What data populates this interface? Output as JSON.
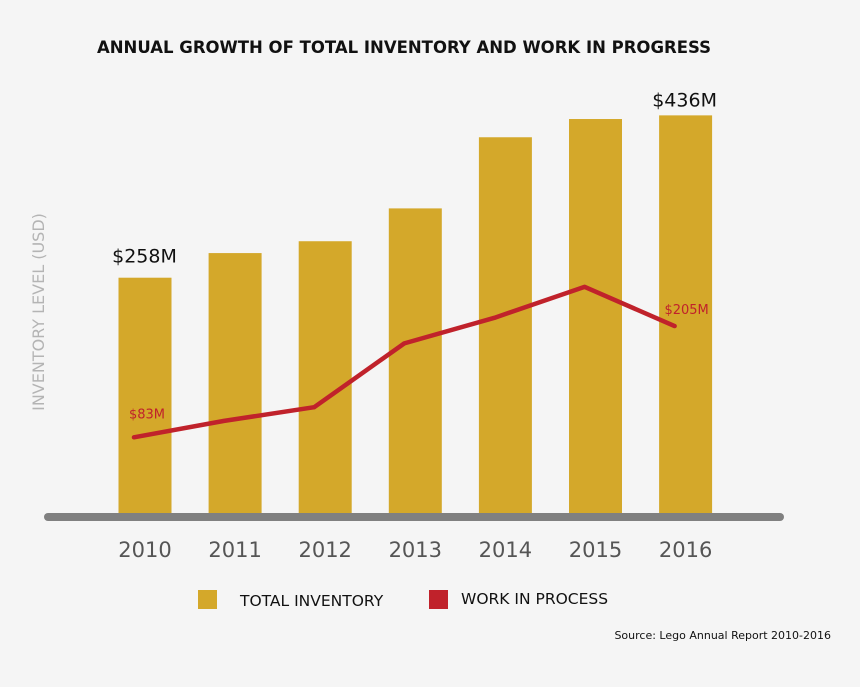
{
  "chart_data": {
    "type": "bar",
    "title": "ANNUAL GROWTH OF TOTAL INVENTORY AND WORK IN PROGRESS",
    "ylabel": "INVENTORY LEVEL (USD)",
    "xlabel": "",
    "categories": [
      "2010",
      "2011",
      "2012",
      "2013",
      "2014",
      "2015",
      "2016"
    ],
    "ylim": [
      0,
      450
    ],
    "series": [
      {
        "name": "TOTAL INVENTORY",
        "type": "bar",
        "color": "#d4a82a",
        "values": [
          258,
          285,
          298,
          334,
          412,
          432,
          436
        ]
      },
      {
        "name": "WORK IN PROCESS",
        "type": "line",
        "color": "#c0222b",
        "values": [
          83,
          101,
          116,
          186,
          214,
          248,
          205
        ]
      }
    ],
    "data_labels": {
      "bar_first": "$258M",
      "bar_last": "$436M",
      "line_first": "$83M",
      "line_last": "$205M"
    },
    "legend": {
      "placement": "bottom",
      "items": [
        "TOTAL INVENTORY",
        "WORK IN PROCESS"
      ]
    },
    "grid": false
  },
  "source": "Source: Lego Annual Report 2010-2016",
  "colors": {
    "background": "#f5f5f5",
    "baseline": "#808080",
    "axis_label": "#b4b4b4",
    "tick_label": "#555555",
    "text": "#111111"
  }
}
